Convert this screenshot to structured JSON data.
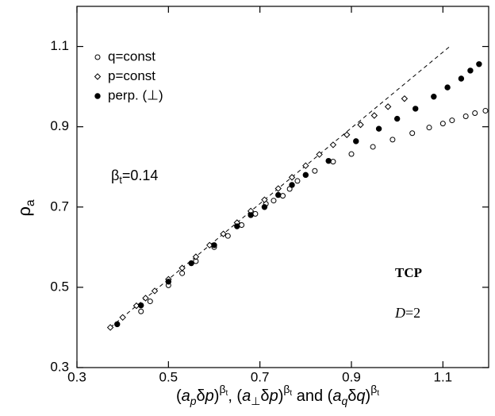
{
  "chart_data": {
    "type": "scatter",
    "x_label": [
      {
        "text": "("
      },
      {
        "text": "a",
        "italic": true
      },
      {
        "text": "p",
        "shift": "sub",
        "italic": true
      },
      {
        "text": "δ"
      },
      {
        "text": "p",
        "italic": true
      },
      {
        "text": ")"
      },
      {
        "text": "β",
        "shift": "sup"
      },
      {
        "text": "t",
        "shift": "supsub"
      },
      {
        "text": ", ("
      },
      {
        "text": "a",
        "italic": true
      },
      {
        "text": "⊥",
        "shift": "sub"
      },
      {
        "text": "δ"
      },
      {
        "text": "p",
        "italic": true
      },
      {
        "text": ")"
      },
      {
        "text": "β",
        "shift": "sup"
      },
      {
        "text": "t",
        "shift": "supsub"
      },
      {
        "text": " and  ("
      },
      {
        "text": "a",
        "italic": true
      },
      {
        "text": "q",
        "shift": "sub",
        "italic": true
      },
      {
        "text": "δ"
      },
      {
        "text": "q",
        "italic": true
      },
      {
        "text": ")"
      },
      {
        "text": "β",
        "shift": "sup"
      },
      {
        "text": "t",
        "shift": "supsub"
      }
    ],
    "y_label": [
      {
        "text": "ρ"
      },
      {
        "text": "a",
        "shift": "sub"
      }
    ],
    "annotations": {
      "beta": [
        {
          "text": "β"
        },
        {
          "text": "t",
          "shift": "sub"
        },
        {
          "text": "=0.14"
        }
      ],
      "model": "TCP",
      "dimension": [
        {
          "text": "D",
          "italic": true
        },
        {
          "text": "=2"
        }
      ]
    },
    "xlim": [
      0.3,
      1.2
    ],
    "ylim": [
      0.3,
      1.2
    ],
    "xticks": [
      0.3,
      0.5,
      0.7,
      0.9,
      1.1
    ],
    "yticks": [
      0.3,
      0.5,
      0.7,
      0.9,
      1.1
    ],
    "reference_line": {
      "x": [
        0.373,
        1.115
      ],
      "y": [
        0.4,
        1.1
      ],
      "color": "#000000"
    },
    "series": [
      {
        "name": "q=const",
        "marker": "open-circle",
        "color": "#000000",
        "x": [
          0.44,
          0.46,
          0.5,
          0.53,
          0.56,
          0.6,
          0.63,
          0.66,
          0.69,
          0.713,
          0.73,
          0.75,
          0.765,
          0.782,
          0.82,
          0.86,
          0.9,
          0.947,
          0.99,
          1.033,
          1.07,
          1.1,
          1.12,
          1.15,
          1.17,
          1.193
        ],
        "values": [
          0.44,
          0.465,
          0.505,
          0.535,
          0.565,
          0.6,
          0.628,
          0.655,
          0.683,
          0.708,
          0.716,
          0.728,
          0.745,
          0.765,
          0.79,
          0.813,
          0.832,
          0.85,
          0.868,
          0.884,
          0.898,
          0.908,
          0.916,
          0.926,
          0.934,
          0.94
        ]
      },
      {
        "name": "p=const",
        "marker": "open-diamond",
        "color": "#000000",
        "x": [
          0.373,
          0.4,
          0.43,
          0.45,
          0.47,
          0.5,
          0.53,
          0.56,
          0.59,
          0.62,
          0.65,
          0.68,
          0.71,
          0.74,
          0.77,
          0.8,
          0.83,
          0.86,
          0.89,
          0.92,
          0.95,
          0.98,
          1.016
        ],
        "values": [
          0.4,
          0.425,
          0.454,
          0.473,
          0.491,
          0.52,
          0.548,
          0.576,
          0.605,
          0.633,
          0.661,
          0.69,
          0.718,
          0.746,
          0.774,
          0.803,
          0.831,
          0.855,
          0.88,
          0.905,
          0.928,
          0.95,
          0.97
        ]
      },
      {
        "name": "perp. (⊥)",
        "marker": "filled-circle",
        "color": "#000000",
        "x": [
          0.388,
          0.44,
          0.5,
          0.55,
          0.6,
          0.65,
          0.68,
          0.71,
          0.74,
          0.77,
          0.8,
          0.85,
          0.91,
          0.96,
          1.0,
          1.04,
          1.08,
          1.11,
          1.14,
          1.16,
          1.179
        ],
        "values": [
          0.408,
          0.455,
          0.514,
          0.56,
          0.605,
          0.652,
          0.68,
          0.7,
          0.73,
          0.755,
          0.78,
          0.815,
          0.864,
          0.895,
          0.92,
          0.945,
          0.975,
          0.998,
          1.02,
          1.04,
          1.056
        ]
      }
    ]
  }
}
